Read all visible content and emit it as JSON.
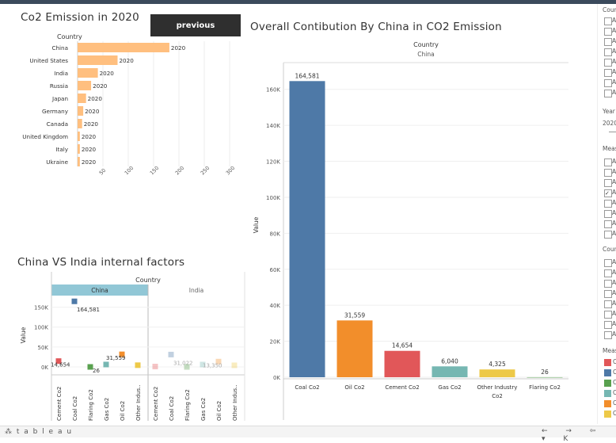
{
  "header": {
    "previous_label": "previous"
  },
  "chart1": {
    "title": "Co2 Emission in 2020",
    "col_header": "Country"
  },
  "chart2": {
    "title": "Overall Contibution By China in CO2 Emission",
    "col_header": "Country",
    "col_value": "China",
    "ylabel": "Value"
  },
  "chart3": {
    "title": "China VS India internal factors",
    "col_header": "Country",
    "ylabel": "Value"
  },
  "right_panel": {
    "country_label": "Count",
    "year_label": "Year",
    "year_value": "2020",
    "measure_label": "Meas",
    "country2_label": "Coun",
    "measure2_label": "Meas",
    "row_prefix": "A",
    "legend_colors": [
      "#e15759",
      "#4e79a7",
      "#59a14f",
      "#76b7b2",
      "#f28e2b",
      "#edc948"
    ],
    "legend_initial": "C"
  },
  "footer": {
    "logo": "⁂ t a b l e a u",
    "nav": "← → ⇦ ▾ K"
  },
  "chart_data": [
    {
      "type": "bar",
      "orientation": "horizontal",
      "title": "Co2 Emission in 2020",
      "categories": [
        "China",
        "United States",
        "India",
        "Russia",
        "Japan",
        "Germany",
        "Canada",
        "United Kingdom",
        "Italy",
        "Ukraine"
      ],
      "values": [
        163,
        71,
        36,
        24,
        15,
        10,
        8,
        4,
        4,
        4
      ],
      "label": "2020",
      "color": "#ffbf7f",
      "xticks": [
        "50",
        "100",
        "150",
        "200",
        "250",
        "300"
      ]
    },
    {
      "type": "bar",
      "title": "Overall Contibution By China in CO2 Emission",
      "categories": [
        "Coal Co2",
        "Oil Co2",
        "Cement Co2",
        "Gas Co2",
        "Other Industry Co2",
        "Flaring Co2"
      ],
      "values": [
        164581,
        31559,
        14654,
        6040,
        4325,
        26
      ],
      "value_labels": [
        "164,581",
        "31,559",
        "14,654",
        "6,040",
        "4,325",
        "26"
      ],
      "colors": [
        "#4e79a7",
        "#f28e2b",
        "#e15759",
        "#76b7b2",
        "#edc948",
        "#59a14f"
      ],
      "yticks": [
        "0K",
        "20K",
        "40K",
        "60K",
        "80K",
        "100K",
        "120K",
        "140K",
        "160K"
      ],
      "ylim": [
        0,
        170000
      ],
      "ylabel": "Value"
    },
    {
      "type": "scatter",
      "title": "China VS India internal factors",
      "panels": [
        "China",
        "India"
      ],
      "categories": [
        "Cement Co2",
        "Coal Co2",
        "Flaring Co2",
        "Gas Co2",
        "Oil Co2",
        "Other Indus.."
      ],
      "series": [
        {
          "name": "China",
          "values": [
            14654,
            164581,
            26,
            6040,
            31559,
            4325
          ]
        },
        {
          "name": "India",
          "values": [
            1000,
            31022,
            0,
            6000,
            13350,
            4000
          ]
        }
      ],
      "value_labels": {
        "China": [
          "14,654",
          "164,581",
          "26",
          "",
          "31,559",
          ""
        ],
        "India": [
          "",
          "31,022",
          "",
          "",
          "13,350",
          ""
        ]
      },
      "yticks": [
        "0K",
        "50K",
        "100K",
        "150K"
      ],
      "ylim": [
        0,
        175000
      ],
      "ylabel": "Value",
      "colors": [
        "#e15759",
        "#4e79a7",
        "#59a14f",
        "#76b7b2",
        "#f28e2b",
        "#edc948"
      ]
    }
  ]
}
